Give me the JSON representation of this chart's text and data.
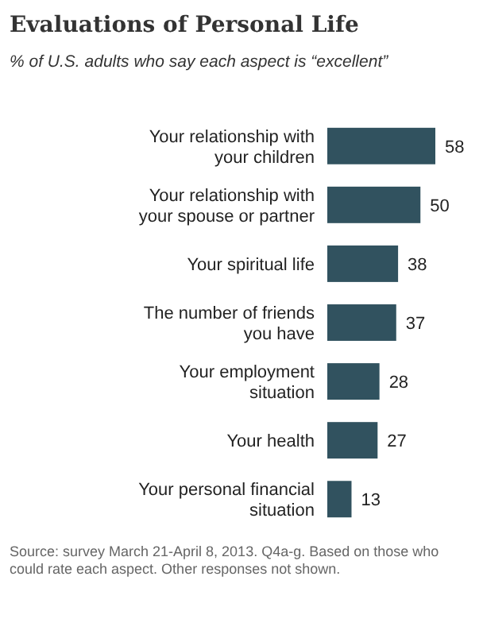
{
  "chart_data": {
    "type": "bar",
    "orientation": "horizontal",
    "title": "Evaluations of Personal Life",
    "subtitle": "% of U.S. adults who say each aspect is “excellent”",
    "categories": [
      "Your relationship with your children",
      "Your relationship with your spouse or partner",
      "Your spiritual life",
      "The number of friends you have",
      "Your employment situation",
      "Your health",
      "Your personal financial situation"
    ],
    "values": [
      58,
      50,
      38,
      37,
      28,
      27,
      13
    ],
    "color": "#31525f",
    "data_labels": true,
    "annotations": [
      "Source: survey March 21-April 8, 2013. Q4a-g. Based on those who could rate each aspect. Other responses not shown."
    ]
  }
}
